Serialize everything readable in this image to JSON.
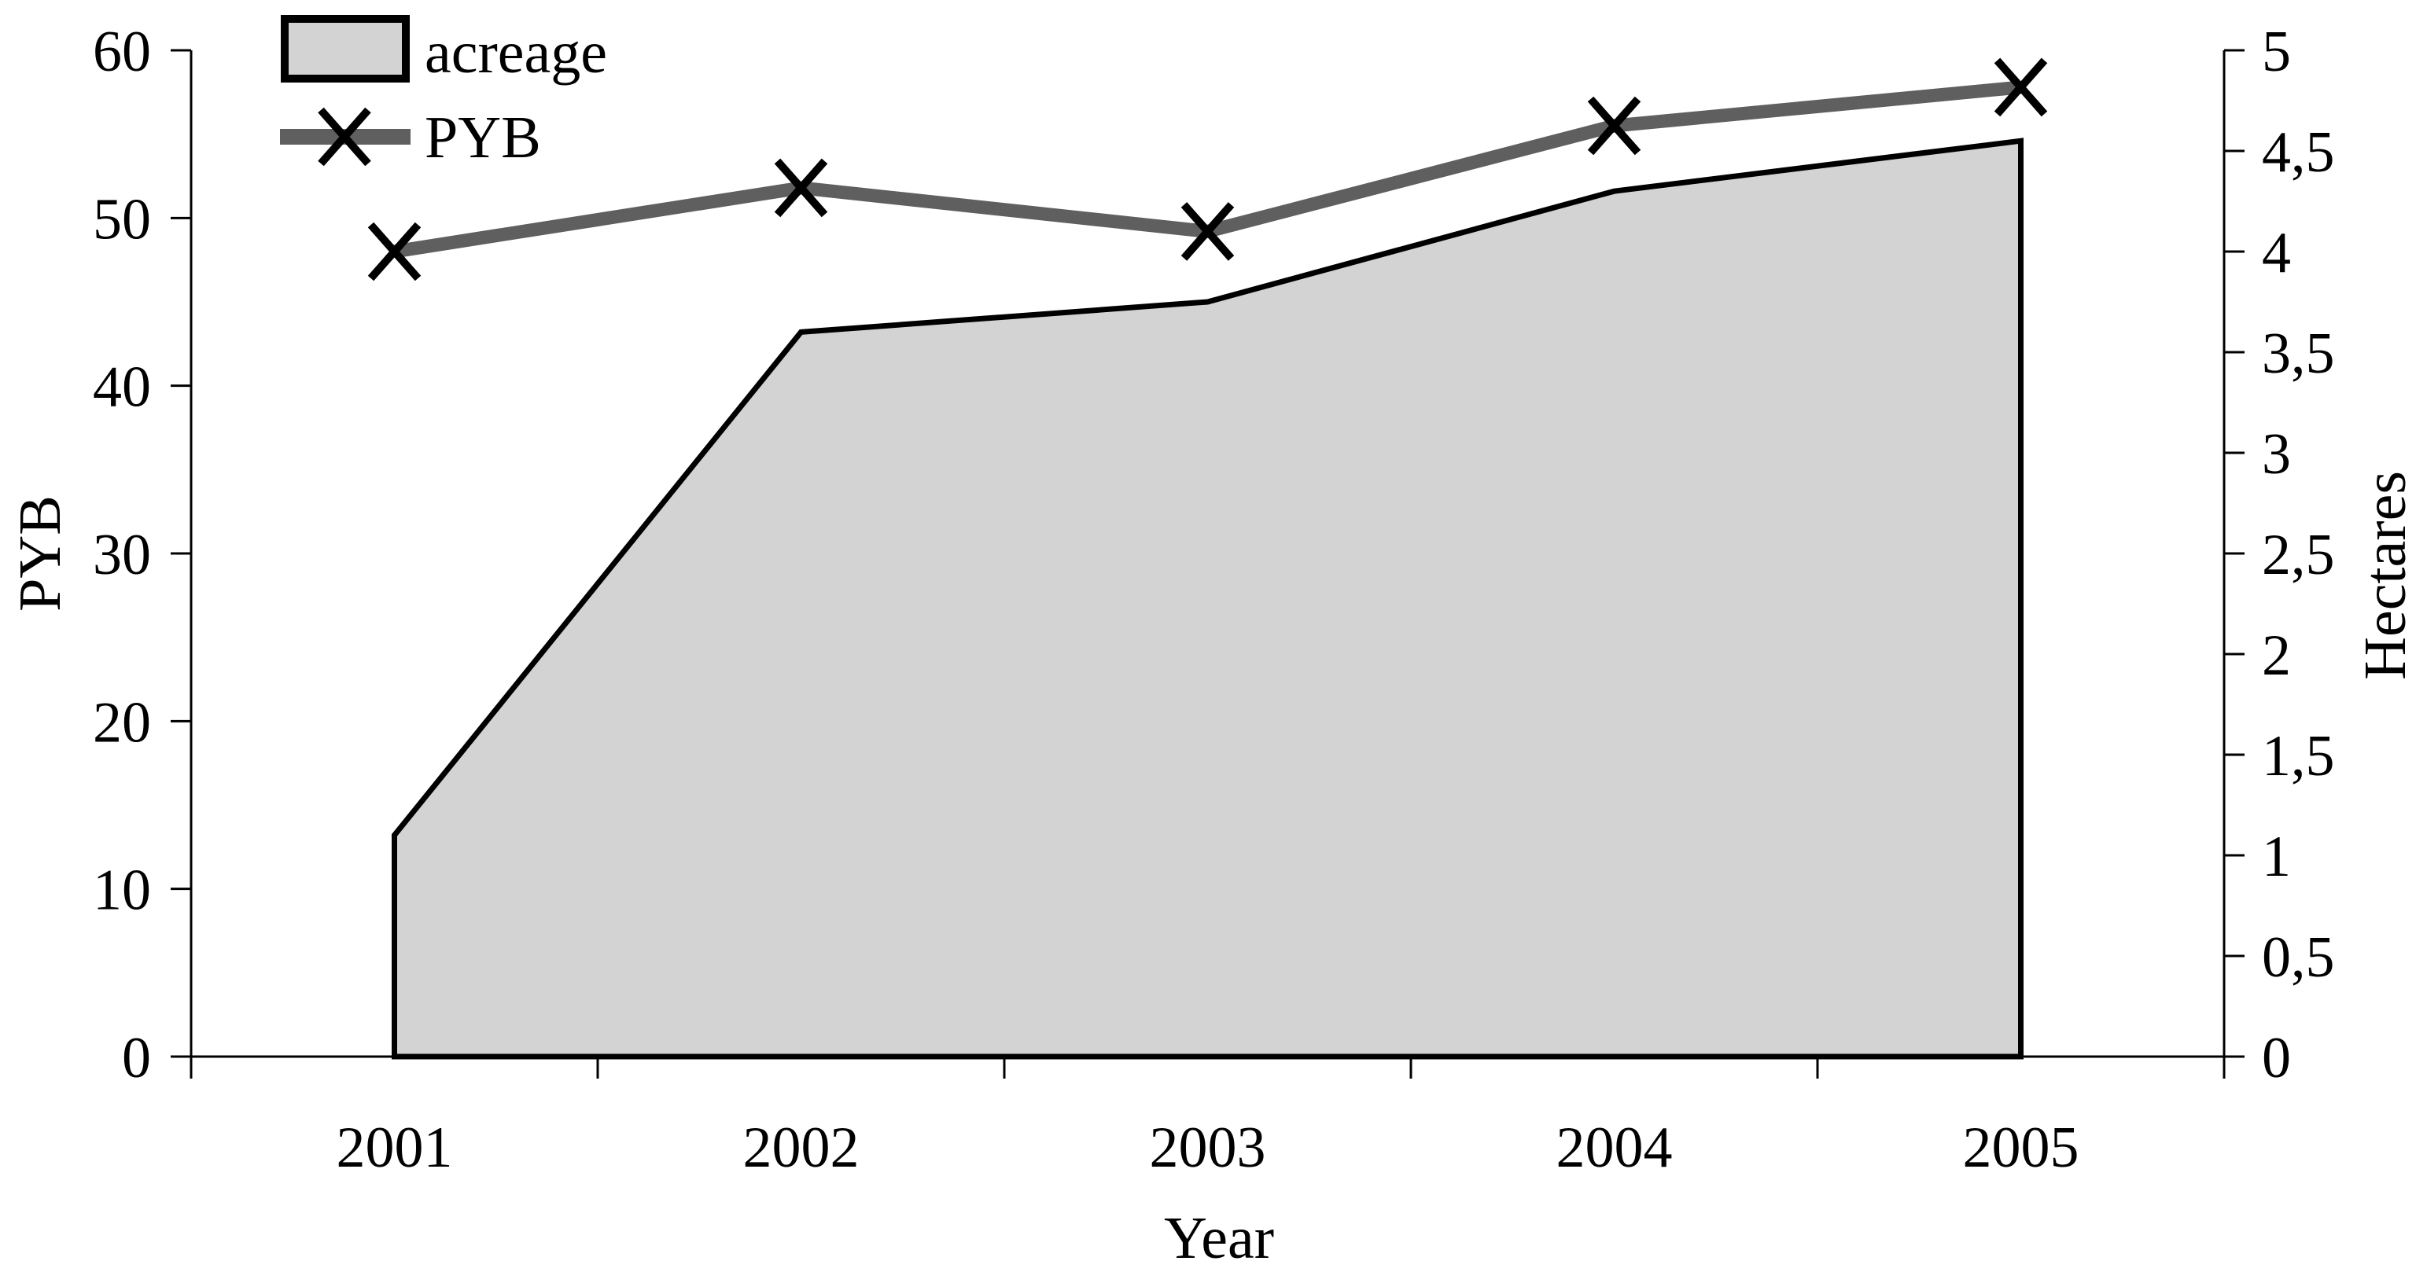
{
  "chart_data": {
    "type": "combo",
    "title": "",
    "categories": [
      "2001",
      "2002",
      "2003",
      "2004",
      "2005"
    ],
    "series": [
      {
        "name": "acreage",
        "type": "area",
        "axis": "right",
        "values": [
          1.1,
          3.6,
          3.75,
          4.3,
          4.55
        ],
        "fill_color": "#d3d3d3",
        "stroke_color": "#000000"
      },
      {
        "name": "PYB",
        "type": "line",
        "axis": "left",
        "marker": "x",
        "values": [
          48,
          51.8,
          49.2,
          55.5,
          57.8
        ],
        "line_color": "#5f5f5f",
        "marker_color": "#000000"
      }
    ],
    "left_axis": {
      "title": "PYB",
      "min": 0,
      "max": 60,
      "step": 10,
      "tick_labels": [
        "0",
        "10",
        "20",
        "30",
        "40",
        "50",
        "60"
      ]
    },
    "right_axis": {
      "title": "Hectares",
      "min": 0,
      "max": 5,
      "step": 0.5,
      "tick_labels": [
        "0",
        "0,5",
        "1",
        "1,5",
        "2",
        "2,5",
        "3",
        "3,5",
        "4",
        "4,5",
        "5"
      ]
    },
    "x_axis": {
      "title": "Year"
    },
    "legend": {
      "position": "top-left-inside",
      "items": [
        {
          "label": "acreage",
          "swatch": "filled-box"
        },
        {
          "label": "PYB",
          "swatch": "line-with-x-marker"
        }
      ]
    },
    "grid": false,
    "background_color": "#ffffff",
    "text_color": "#000000"
  }
}
